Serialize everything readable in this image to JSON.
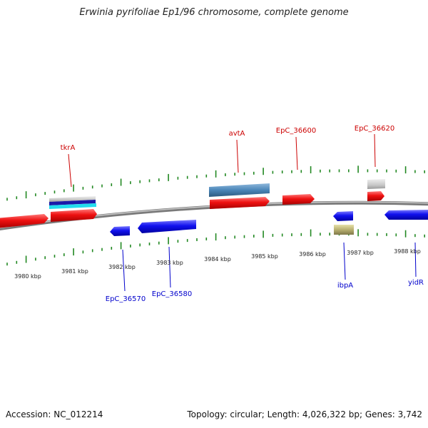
{
  "title": "Erwinia pyrifoliae Ep1/96 chromosome, complete genome",
  "footer": {
    "accession": "Accession: NC_012214",
    "summary": "Topology: circular; Length: 4,026,322 bp; Genes: 3,742"
  },
  "colors": {
    "plus_gene": "#ee1111",
    "minus_gene": "#1111ee",
    "plus_label": "#cc0000",
    "minus_label": "#0000cc",
    "tick": "#228822",
    "backbone": "#888888",
    "rna": "#4a86b8",
    "olive_feature": "#b8b070",
    "gray_feature": "#c8c8c8",
    "cyan_feature": "#22ddee"
  },
  "scale_labels": [
    "3980 kbp",
    "3981 kbp",
    "3982 kbp",
    "3983 kbp",
    "3984 kbp",
    "3985 kbp",
    "3986 kbp",
    "3987 kbp",
    "3988 kbp"
  ],
  "gene_labels": {
    "plus": [
      "tkrA",
      "avtA",
      "EpC_36600",
      "EpC_36620"
    ],
    "minus": [
      "EpC_36570",
      "EpC_36580",
      "ibpA",
      "yidR"
    ]
  }
}
